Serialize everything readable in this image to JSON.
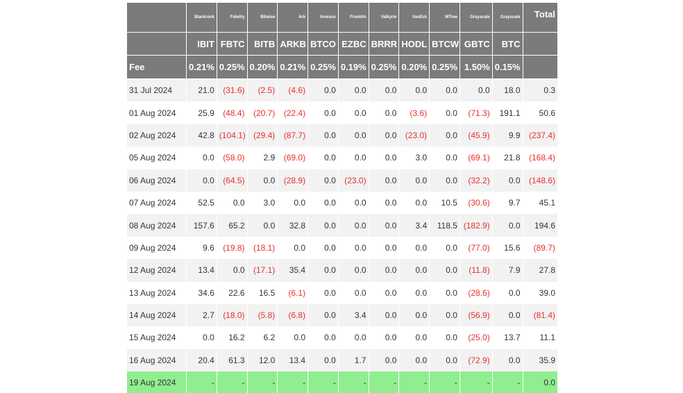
{
  "columns": {
    "date_label": "",
    "issuers": [
      "Blackrock",
      "Fidelity",
      "Bitwise",
      "Ark",
      "Invesco",
      "Franklin",
      "Valkyrie",
      "VanEck",
      "WTree",
      "Grayscale",
      "Grayscale"
    ],
    "tickers": [
      "IBIT",
      "FBTC",
      "BITB",
      "ARKB",
      "BTCO",
      "EZBC",
      "BRRR",
      "HODL",
      "BTCW",
      "GBTC",
      "BTC"
    ],
    "total_label": "Total"
  },
  "fee": {
    "label": "Fee",
    "values": [
      "0.21%",
      "0.25%",
      "0.20%",
      "0.21%",
      "0.25%",
      "0.19%",
      "0.25%",
      "0.20%",
      "0.25%",
      "1.50%",
      "0.15%"
    ]
  },
  "rows": [
    {
      "date": "31 Jul 2024",
      "values": [
        "21.0",
        "(31.6)",
        "(2.5)",
        "(4.6)",
        "0.0",
        "0.0",
        "0.0",
        "0.0",
        "0.0",
        "0.0",
        "18.0"
      ],
      "total": "0.3"
    },
    {
      "date": "01 Aug 2024",
      "values": [
        "25.9",
        "(48.4)",
        "(20.7)",
        "(22.4)",
        "0.0",
        "0.0",
        "0.0",
        "(3.6)",
        "0.0",
        "(71.3)",
        "191.1"
      ],
      "total": "50.6"
    },
    {
      "date": "02 Aug 2024",
      "values": [
        "42.8",
        "(104.1)",
        "(29.4)",
        "(87.7)",
        "0.0",
        "0.0",
        "0.0",
        "(23.0)",
        "0.0",
        "(45.9)",
        "9.9"
      ],
      "total": "(237.4)"
    },
    {
      "date": "05 Aug 2024",
      "values": [
        "0.0",
        "(58.0)",
        "2.9",
        "(69.0)",
        "0.0",
        "0.0",
        "0.0",
        "3.0",
        "0.0",
        "(69.1)",
        "21.8"
      ],
      "total": "(168.4)"
    },
    {
      "date": "06 Aug 2024",
      "values": [
        "0.0",
        "(64.5)",
        "0.0",
        "(28.9)",
        "0.0",
        "(23.0)",
        "0.0",
        "0.0",
        "0.0",
        "(32.2)",
        "0.0"
      ],
      "total": "(148.6)"
    },
    {
      "date": "07 Aug 2024",
      "values": [
        "52.5",
        "0.0",
        "3.0",
        "0.0",
        "0.0",
        "0.0",
        "0.0",
        "0.0",
        "10.5",
        "(30.6)",
        "9.7"
      ],
      "total": "45.1"
    },
    {
      "date": "08 Aug 2024",
      "values": [
        "157.6",
        "65.2",
        "0.0",
        "32.8",
        "0.0",
        "0.0",
        "0.0",
        "3.4",
        "118.5",
        "(182.9)",
        "0.0"
      ],
      "total": "194.6"
    },
    {
      "date": "09 Aug 2024",
      "values": [
        "9.6",
        "(19.8)",
        "(18.1)",
        "0.0",
        "0.0",
        "0.0",
        "0.0",
        "0.0",
        "0.0",
        "(77.0)",
        "15.6"
      ],
      "total": "(89.7)"
    },
    {
      "date": "12 Aug 2024",
      "values": [
        "13.4",
        "0.0",
        "(17.1)",
        "35.4",
        "0.0",
        "0.0",
        "0.0",
        "0.0",
        "0.0",
        "(11.8)",
        "7.9"
      ],
      "total": "27.8"
    },
    {
      "date": "13 Aug 2024",
      "values": [
        "34.6",
        "22.6",
        "16.5",
        "(6.1)",
        "0.0",
        "0.0",
        "0.0",
        "0.0",
        "0.0",
        "(28.6)",
        "0.0"
      ],
      "total": "39.0"
    },
    {
      "date": "14 Aug 2024",
      "values": [
        "2.7",
        "(18.0)",
        "(5.8)",
        "(6.8)",
        "0.0",
        "3.4",
        "0.0",
        "0.0",
        "0.0",
        "(56.9)",
        "0.0"
      ],
      "total": "(81.4)"
    },
    {
      "date": "15 Aug 2024",
      "values": [
        "0.0",
        "16.2",
        "6.2",
        "0.0",
        "0.0",
        "0.0",
        "0.0",
        "0.0",
        "0.0",
        "(25.0)",
        "13.7"
      ],
      "total": "11.1"
    },
    {
      "date": "16 Aug 2024",
      "values": [
        "20.4",
        "61.3",
        "12.0",
        "13.4",
        "0.0",
        "1.7",
        "0.0",
        "0.0",
        "0.0",
        "(72.9)",
        "0.0"
      ],
      "total": "35.9"
    },
    {
      "date": "19 Aug 2024",
      "values": [
        "-",
        "-",
        "-",
        "-",
        "-",
        "-",
        "-",
        "-",
        "-",
        "-",
        "-"
      ],
      "total": "0.0",
      "highlight": true
    }
  ],
  "colors": {
    "header_bg": "#7b7b7b",
    "negative": "#e8302e",
    "stripe": "#f2f2f2",
    "highlight": "#90ee90"
  }
}
